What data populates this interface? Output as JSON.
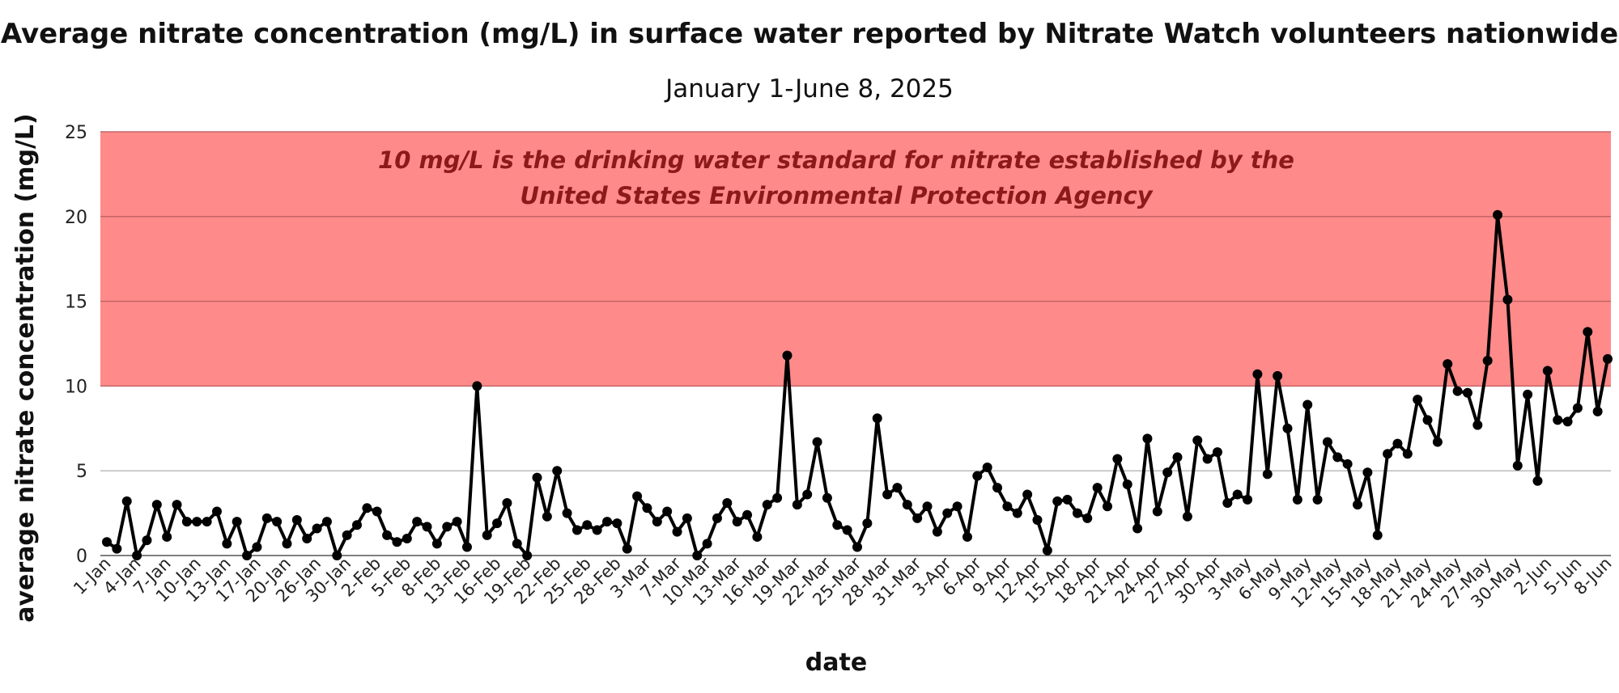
{
  "title": "Average nitrate concentration (mg/L) in surface water reported by Nitrate Watch volunteers nationwide",
  "subtitle": "January 1-June 8, 2025",
  "chart_data": {
    "type": "line",
    "title": "Average nitrate concentration (mg/L) in surface water reported by Nitrate Watch volunteers nationwide",
    "subtitle": "January 1-June 8, 2025",
    "xlabel": "date",
    "ylabel": "average nitrate concentration (mg/L)",
    "ylim": [
      0,
      25
    ],
    "yticks": [
      0,
      5,
      10,
      15,
      20,
      25
    ],
    "grid": true,
    "marker": "circle",
    "line_color": "#000000",
    "threshold_band": {
      "from": 10,
      "to": 25,
      "color": "#ff8a8a",
      "annotation_lines": [
        "10 mg/L is the drinking water standard for nitrate established by the",
        "United States Environmental Protection Agency"
      ],
      "annotation_color": "#8c1a1a"
    },
    "x_ticks": [
      {
        "label": "1-Jan",
        "index": 0
      },
      {
        "label": "4-Jan",
        "index": 3
      },
      {
        "label": "7-Jan",
        "index": 6
      },
      {
        "label": "10-Jan",
        "index": 9
      },
      {
        "label": "13-Jan",
        "index": 12
      },
      {
        "label": "17-Jan",
        "index": 15
      },
      {
        "label": "20-Jan",
        "index": 18
      },
      {
        "label": "26-Jan",
        "index": 21
      },
      {
        "label": "30-Jan",
        "index": 24
      },
      {
        "label": "2-Feb",
        "index": 27
      },
      {
        "label": "5-Feb",
        "index": 30
      },
      {
        "label": "8-Feb",
        "index": 33
      },
      {
        "label": "13-Feb",
        "index": 36
      },
      {
        "label": "16-Feb",
        "index": 39
      },
      {
        "label": "19-Feb",
        "index": 42
      },
      {
        "label": "22-Feb",
        "index": 45
      },
      {
        "label": "25-Feb",
        "index": 48
      },
      {
        "label": "28-Feb",
        "index": 51
      },
      {
        "label": "3-Mar",
        "index": 54
      },
      {
        "label": "7-Mar",
        "index": 57
      },
      {
        "label": "10-Mar",
        "index": 60
      },
      {
        "label": "13-Mar",
        "index": 63
      },
      {
        "label": "16-Mar",
        "index": 66
      },
      {
        "label": "19-Mar",
        "index": 69
      },
      {
        "label": "22-Mar",
        "index": 72
      },
      {
        "label": "25-Mar",
        "index": 75
      },
      {
        "label": "28-Mar",
        "index": 78
      },
      {
        "label": "31-Mar",
        "index": 81
      },
      {
        "label": "3-Apr",
        "index": 84
      },
      {
        "label": "6-Apr",
        "index": 87
      },
      {
        "label": "9-Apr",
        "index": 90
      },
      {
        "label": "12-Apr",
        "index": 93
      },
      {
        "label": "15-Apr",
        "index": 96
      },
      {
        "label": "18-Apr",
        "index": 99
      },
      {
        "label": "21-Apr",
        "index": 102
      },
      {
        "label": "24-Apr",
        "index": 105
      },
      {
        "label": "27-Apr",
        "index": 108
      },
      {
        "label": "30-Apr",
        "index": 111
      },
      {
        "label": "3-May",
        "index": 114
      },
      {
        "label": "6-May",
        "index": 117
      },
      {
        "label": "9-May",
        "index": 120
      },
      {
        "label": "12-May",
        "index": 123
      },
      {
        "label": "15-May",
        "index": 126
      },
      {
        "label": "18-May",
        "index": 129
      },
      {
        "label": "21-May",
        "index": 132
      },
      {
        "label": "24-May",
        "index": 135
      },
      {
        "label": "27-May",
        "index": 138
      },
      {
        "label": "30-May",
        "index": 141
      },
      {
        "label": "2-Jun",
        "index": 144
      },
      {
        "label": "5-Jun",
        "index": 147
      },
      {
        "label": "8-Jun",
        "index": 150
      }
    ],
    "series": [
      {
        "values": [
          0.8,
          0.4,
          3.2,
          0.0,
          0.9,
          3.0,
          1.1,
          3.0,
          2.0,
          2.0,
          2.0,
          2.6,
          0.7,
          2.0,
          0.0,
          0.5,
          2.2,
          2.0,
          0.7,
          2.1,
          1.0,
          1.6,
          2.0,
          0.0,
          1.2,
          1.8,
          2.8,
          2.6,
          1.2,
          0.8,
          1.0,
          2.0,
          1.7,
          0.7,
          1.7,
          2.0,
          0.5,
          10.0,
          1.2,
          1.9,
          3.1,
          0.7,
          0.0,
          4.6,
          2.3,
          5.0,
          2.5,
          1.5,
          1.8,
          1.5,
          2.0,
          1.9,
          0.4,
          3.5,
          2.8,
          2.0,
          2.6,
          1.4,
          2.2,
          0.0,
          0.7,
          2.2,
          3.1,
          2.0,
          2.4,
          1.1,
          3.0,
          3.4,
          11.8,
          3.0,
          3.6,
          6.7,
          3.4,
          1.8,
          1.5,
          0.5,
          1.9,
          8.1,
          3.6,
          4.0,
          3.0,
          2.2,
          2.9,
          1.4,
          2.5,
          2.9,
          1.1,
          4.7,
          5.2,
          4.0,
          2.9,
          2.5,
          3.6,
          2.1,
          0.3,
          3.2,
          3.3,
          2.5,
          2.2,
          4.0,
          2.9,
          5.7,
          4.2,
          1.6,
          6.9,
          2.6,
          4.9,
          5.8,
          2.3,
          6.8,
          5.7,
          6.1,
          3.1,
          3.6,
          3.3,
          10.7,
          4.8,
          10.6,
          7.5,
          3.3,
          8.9,
          3.3,
          6.7,
          5.8,
          5.4,
          3.0,
          4.9,
          1.2,
          6.0,
          6.6,
          6.0,
          9.2,
          8.0,
          6.7,
          11.3,
          9.7,
          9.6,
          7.7,
          11.5,
          20.1,
          15.1,
          5.3,
          9.5,
          4.4,
          10.9,
          8.0,
          7.9,
          8.7,
          13.2,
          8.5,
          11.6
        ]
      }
    ]
  }
}
